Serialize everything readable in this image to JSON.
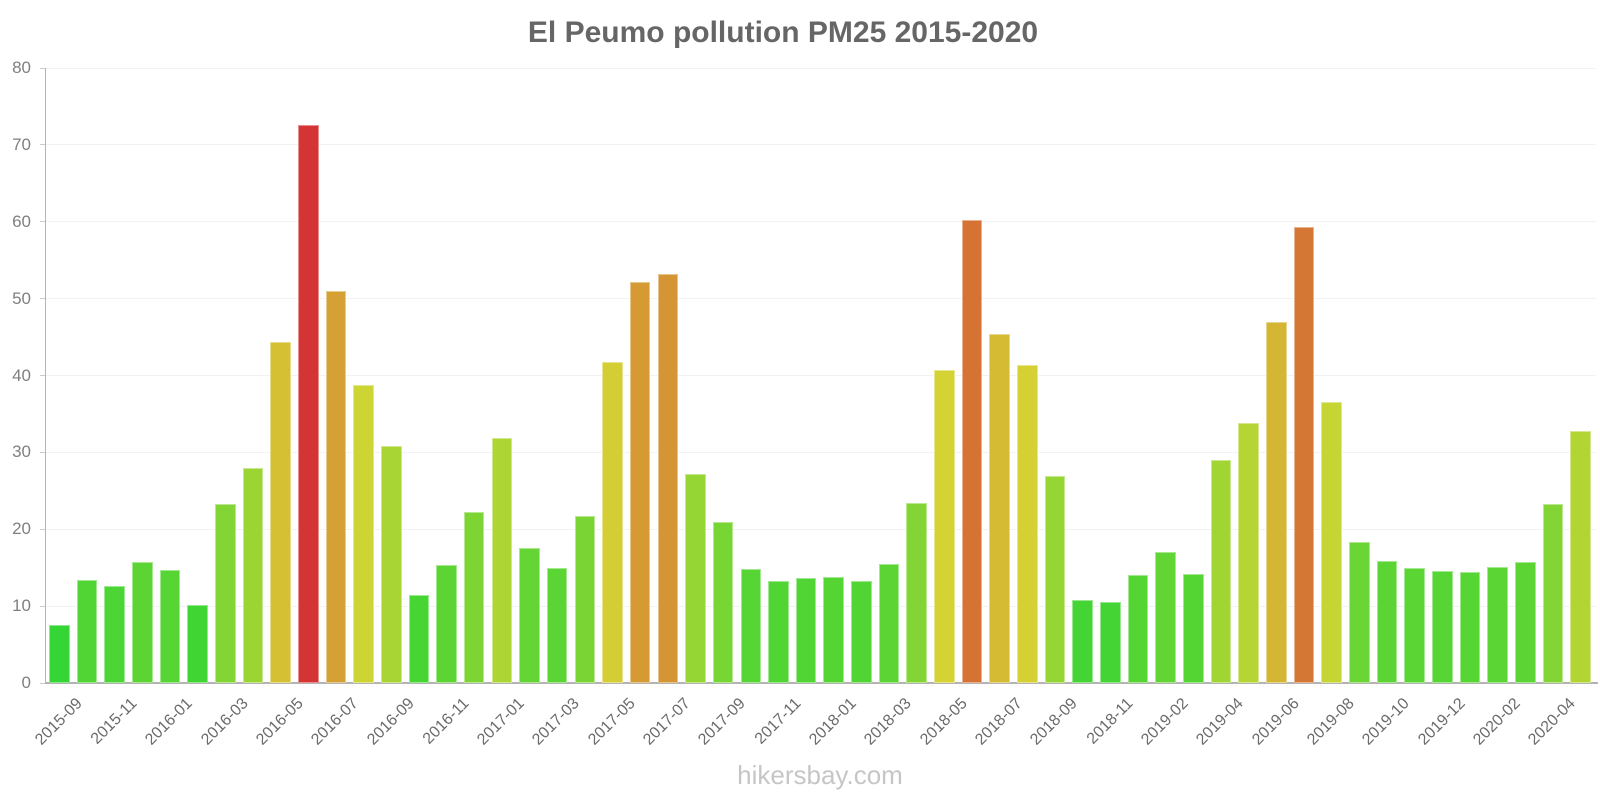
{
  "title": "El Peumo pollution PM25 2015-2020",
  "footer": "hikersbay.com",
  "chart_data": {
    "type": "bar",
    "title": "El Peumo pollution PM25 2015-2020",
    "xlabel": "",
    "ylabel": "",
    "ylim": [
      0,
      80
    ],
    "yticks": [
      0,
      10,
      20,
      30,
      40,
      50,
      60,
      70,
      80
    ],
    "grid": true,
    "legend": false,
    "x_label_every_nth_bar": 2,
    "categories": [
      "2015-09",
      "2015-10",
      "2015-11",
      "2015-12",
      "2016-01",
      "2016-02",
      "2016-03",
      "2016-04",
      "2016-05",
      "2016-06",
      "2016-07",
      "2016-08",
      "2016-09",
      "2016-10",
      "2016-11",
      "2016-12",
      "2017-01",
      "2017-02",
      "2017-03",
      "2017-04",
      "2017-05",
      "2017-06",
      "2017-07",
      "2017-08",
      "2017-09",
      "2017-10",
      "2017-11",
      "2017-12",
      "2018-01",
      "2018-02",
      "2018-03",
      "2018-04",
      "2018-05",
      "2018-06",
      "2018-07",
      "2018-08",
      "2018-09",
      "2018-10",
      "2018-11",
      "2018-12",
      "2019-02",
      "2019-03",
      "2019-04",
      "2019-05",
      "2019-06",
      "2019-07",
      "2019-08",
      "2019-09",
      "2019-10",
      "2019-11",
      "2019-12",
      "2020-01",
      "2020-02",
      "2020-03",
      "2020-04",
      "2020-05"
    ],
    "values": [
      7.5,
      13.4,
      12.6,
      15.7,
      14.7,
      10.2,
      23.3,
      28.0,
      44.3,
      72.6,
      51.0,
      38.7,
      30.8,
      11.4,
      15.4,
      22.3,
      31.9,
      17.5,
      14.9,
      21.7,
      41.7,
      52.1,
      53.2,
      27.2,
      20.9,
      14.8,
      13.3,
      13.7,
      13.8,
      13.3,
      15.5,
      23.4,
      40.7,
      60.2,
      45.4,
      41.4,
      26.9,
      10.8,
      10.5,
      14.1,
      17.0,
      14.2,
      29.0,
      33.8,
      46.9,
      59.3,
      36.6,
      18.4,
      15.9,
      14.9,
      14.6,
      14.4,
      15.1,
      15.8,
      23.3,
      32.8
    ],
    "colors": [
      "hsl(120,66%,52%)",
      "hsl(109,66%,52%)",
      "hsl(111,66%,52%)",
      "hsl(105,66%,52%)",
      "hsl(107,66%,52%)",
      "hsl(115,66%,52%)",
      "hsl(91,66%,52%)",
      "hsl(82,66%,52%)",
      "hsl(52,66%,52%)",
      "hsl(0,66%,52%)",
      "hsl(40,66%,52%)",
      "hsl(63,66%,52%)",
      "hsl(77,66%,52%)",
      "hsl(113,66%,52%)",
      "hsl(105,66%,52%)",
      "hsl(93,66%,52%)",
      "hsl(75,66%,52%)",
      "hsl(102,66%,52%)",
      "hsl(106,66%,52%)",
      "hsl(94,66%,52%)",
      "hsl(57,66%,52%)",
      "hsl(38,66%,52%)",
      "hsl(36,66%,52%)",
      "hsl(84,66%,52%)",
      "hsl(95,66%,52%)",
      "hsl(107,66%,52%)",
      "hsl(109,66%,52%)",
      "hsl(109,66%,52%)",
      "hsl(108,66%,52%)",
      "hsl(109,66%,52%)",
      "hsl(105,66%,52%)",
      "hsl(91,66%,52%)",
      "hsl(59,66%,52%)",
      "hsl(23,66%,52%)",
      "hsl(50,66%,52%)",
      "hsl(58,66%,52%)",
      "hsl(84,66%,52%)",
      "hsl(114,66%,52%)",
      "hsl(114,66%,52%)",
      "hsl(108,66%,52%)",
      "hsl(103,66%,52%)",
      "hsl(108,66%,52%)",
      "hsl(80,66%,52%)",
      "hsl(72,66%,52%)",
      "hsl(48,66%,52%)",
      "hsl(25,66%,52%)",
      "hsl(66,66%,52%)",
      "hsl(100,66%,52%)",
      "hsl(105,66%,52%)",
      "hsl(106,66%,52%)",
      "hsl(107,66%,52%)",
      "hsl(107,66%,52%)",
      "hsl(106,66%,52%)",
      "hsl(105,66%,52%)",
      "hsl(91,66%,52%)",
      "hsl(73,66%,52%)"
    ]
  }
}
